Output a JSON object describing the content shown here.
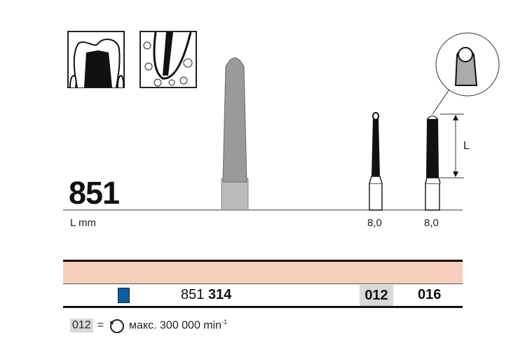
{
  "product": {
    "model": "851",
    "length_label": "L mm",
    "dimension_label": "L",
    "lengths": [
      "8,0",
      "8,0"
    ]
  },
  "table": {
    "reference_prefix": "851",
    "reference_code": "314",
    "sizes": [
      "012",
      "016"
    ],
    "highlighted_size": "012",
    "grit_color": "#0a5fa0",
    "header_color": "#f7cdbb"
  },
  "footer": {
    "code": "012",
    "equals": "=",
    "speed_text": "макс. 300 000 min",
    "speed_superscript": "-1",
    "icon": "rotation-icon"
  },
  "icons": [
    "crown-preparation-icon",
    "root-canal-icon"
  ]
}
